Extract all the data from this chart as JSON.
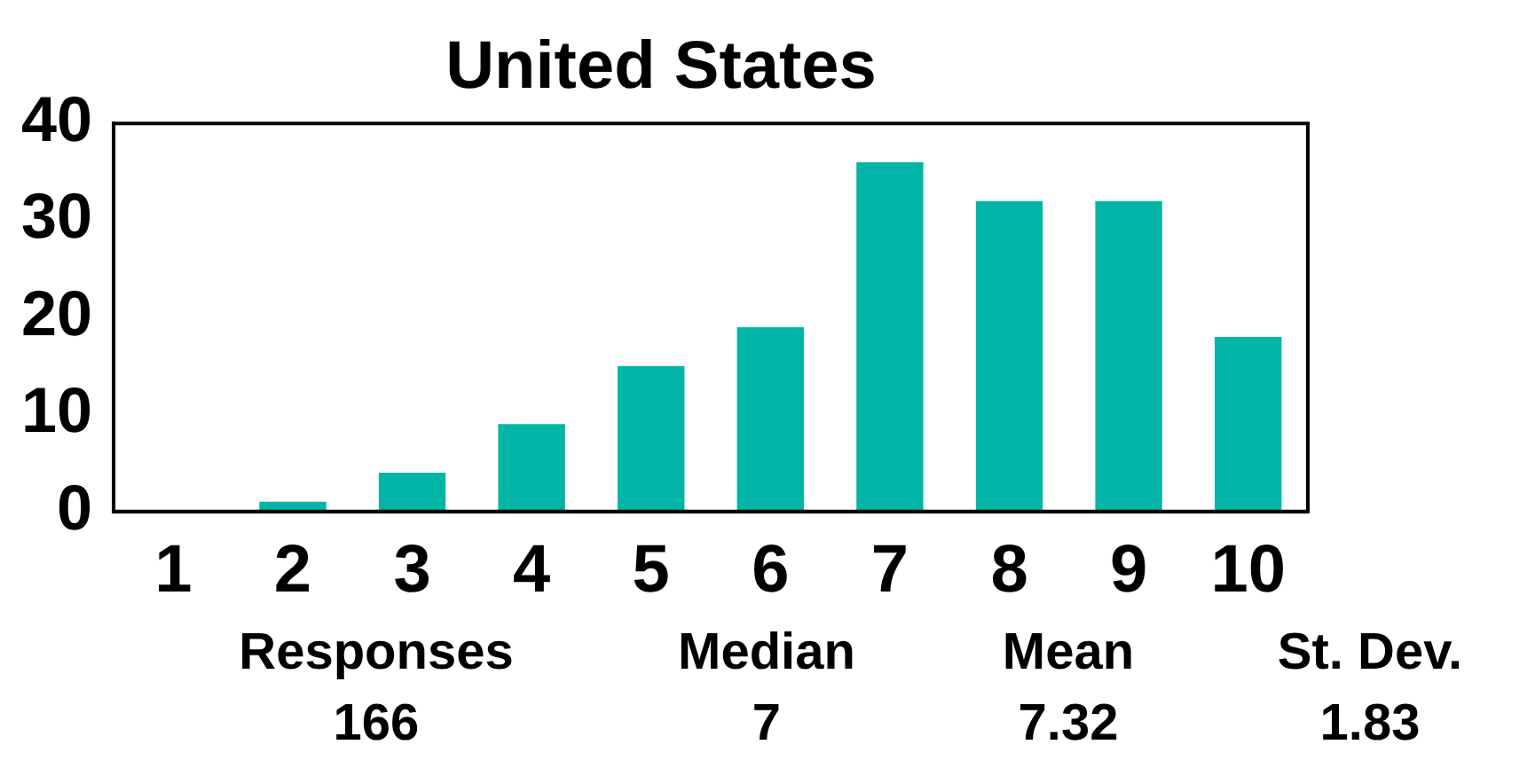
{
  "chart_data": {
    "type": "bar",
    "title": "United States",
    "categories": [
      "1",
      "2",
      "3",
      "4",
      "5",
      "6",
      "7",
      "8",
      "9",
      "10"
    ],
    "values": [
      0,
      1,
      4,
      9,
      15,
      19,
      36,
      32,
      32,
      18
    ],
    "color": "#00b5a5",
    "ylim": [
      0,
      40
    ],
    "yticks": [
      0,
      10,
      20,
      30,
      40
    ],
    "grid": false,
    "legend": false,
    "annotations": [
      "Responses",
      "166",
      "Median",
      "7",
      "Mean",
      "7.32",
      "St. Dev.",
      "1.83"
    ]
  }
}
